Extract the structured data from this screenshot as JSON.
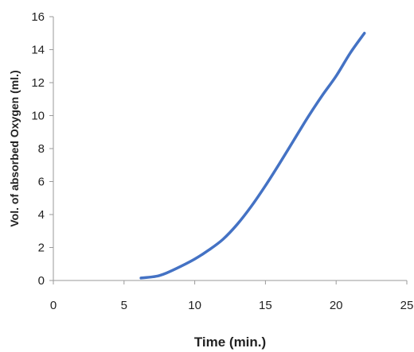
{
  "chart_data": {
    "type": "line",
    "title": "",
    "xlabel": "Time (min.)",
    "ylabel": "Vol. of absorbed Oxygen (ml.)",
    "xlim": [
      0,
      25
    ],
    "ylim": [
      0,
      16
    ],
    "xticks": [
      0,
      5,
      10,
      15,
      20,
      25
    ],
    "yticks": [
      0,
      2,
      4,
      6,
      8,
      10,
      12,
      14,
      16
    ],
    "grid": false,
    "legend": "none",
    "series": [
      {
        "color": "#4472c4",
        "x": [
          6.2,
          7.0,
          7.5,
          8.0,
          9.0,
          10.0,
          11.0,
          12.0,
          13.0,
          14.0,
          15.0,
          16.0,
          17.0,
          18.0,
          19.0,
          20.0,
          21.0,
          22.0
        ],
        "y": [
          0.15,
          0.22,
          0.3,
          0.45,
          0.85,
          1.3,
          1.85,
          2.5,
          3.4,
          4.5,
          5.75,
          7.1,
          8.5,
          9.9,
          11.2,
          12.4,
          13.8,
          15.0
        ]
      }
    ]
  }
}
